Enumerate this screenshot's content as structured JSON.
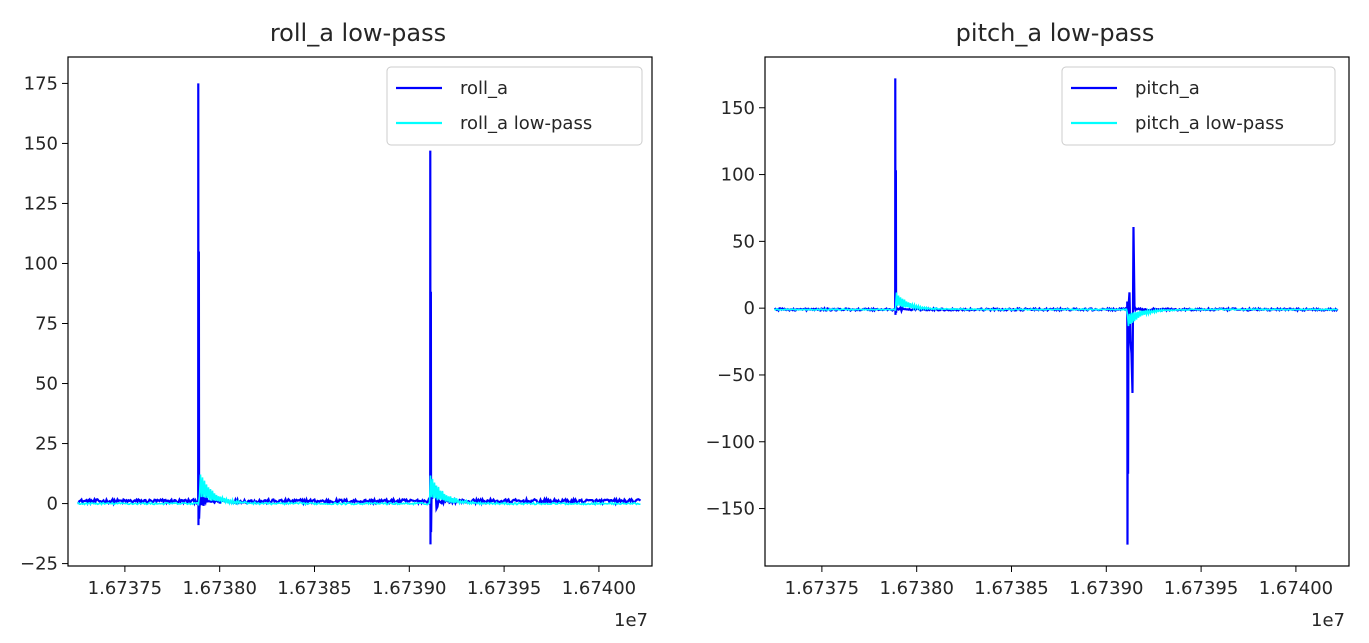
{
  "chart_data": [
    {
      "type": "line",
      "title": "roll_a low-pass",
      "xlabel": "",
      "ylabel": "",
      "x_offset_label": "1e7",
      "xlim": [
        16737200.0,
        16740280.0
      ],
      "ylim": [
        -26,
        186
      ],
      "x_ticks": [
        16737500.0,
        16738000.0,
        16738500.0,
        16739000.0,
        16739500.0,
        16740000.0
      ],
      "x_tick_labels": [
        "1.67375",
        "1.67380",
        "1.67385",
        "1.67390",
        "1.67395",
        "1.67400"
      ],
      "y_ticks": [
        -25,
        0,
        25,
        50,
        75,
        100,
        125,
        150,
        175
      ],
      "y_tick_labels": [
        "−25",
        "0",
        "25",
        "50",
        "75",
        "100",
        "125",
        "150",
        "175"
      ],
      "grid": false,
      "legend_position": "top-right",
      "series": [
        {
          "name": "roll_a",
          "color": "#0000ff",
          "baseline": 1,
          "x_range": [
            16737250.0,
            16740220.0
          ],
          "events": [
            {
              "x": 16737890.0,
              "peak": 175,
              "dip": -9
            },
            {
              "x": 16739110.0,
              "peak": 147,
              "dip": -17
            }
          ]
        },
        {
          "name": "roll_a low-pass",
          "color": "#00ffff",
          "baseline": 0,
          "x_range": [
            16737250.0,
            16740220.0
          ],
          "events": [
            {
              "x": 16737890.0,
              "peak": 14,
              "dip": 0
            },
            {
              "x": 16739110.0,
              "peak": 12,
              "dip": 0
            }
          ]
        }
      ]
    },
    {
      "type": "line",
      "title": "pitch_a low-pass",
      "xlabel": "",
      "ylabel": "",
      "x_offset_label": "1e7",
      "xlim": [
        16737200.0,
        16740280.0
      ],
      "ylim": [
        -193,
        188
      ],
      "x_ticks": [
        16737500.0,
        16738000.0,
        16738500.0,
        16739000.0,
        16739500.0,
        16740000.0
      ],
      "x_tick_labels": [
        "1.67375",
        "1.67380",
        "1.67385",
        "1.67390",
        "1.67395",
        "1.67400"
      ],
      "y_ticks": [
        -150,
        -100,
        -50,
        0,
        50,
        100,
        150
      ],
      "y_tick_labels": [
        "−150",
        "−100",
        "−50",
        "0",
        "50",
        "100",
        "150"
      ],
      "grid": false,
      "legend_position": "top-right",
      "series": [
        {
          "name": "pitch_a",
          "color": "#0000ff",
          "baseline": -1,
          "x_range": [
            16737250.0,
            16740220.0
          ],
          "events": [
            {
              "x": 16737890.0,
              "peak": 172,
              "dip": -5
            },
            {
              "x": 16739110.0,
              "peak": 5,
              "dip": -177
            }
          ]
        },
        {
          "name": "pitch_a low-pass",
          "color": "#00ffff",
          "baseline": -1,
          "x_range": [
            16737250.0,
            16740220.0
          ],
          "events": [
            {
              "x": 16737890.0,
              "peak": 12,
              "dip": -1
            },
            {
              "x": 16739110.0,
              "peak": 0,
              "dip": -15
            }
          ]
        }
      ]
    }
  ]
}
